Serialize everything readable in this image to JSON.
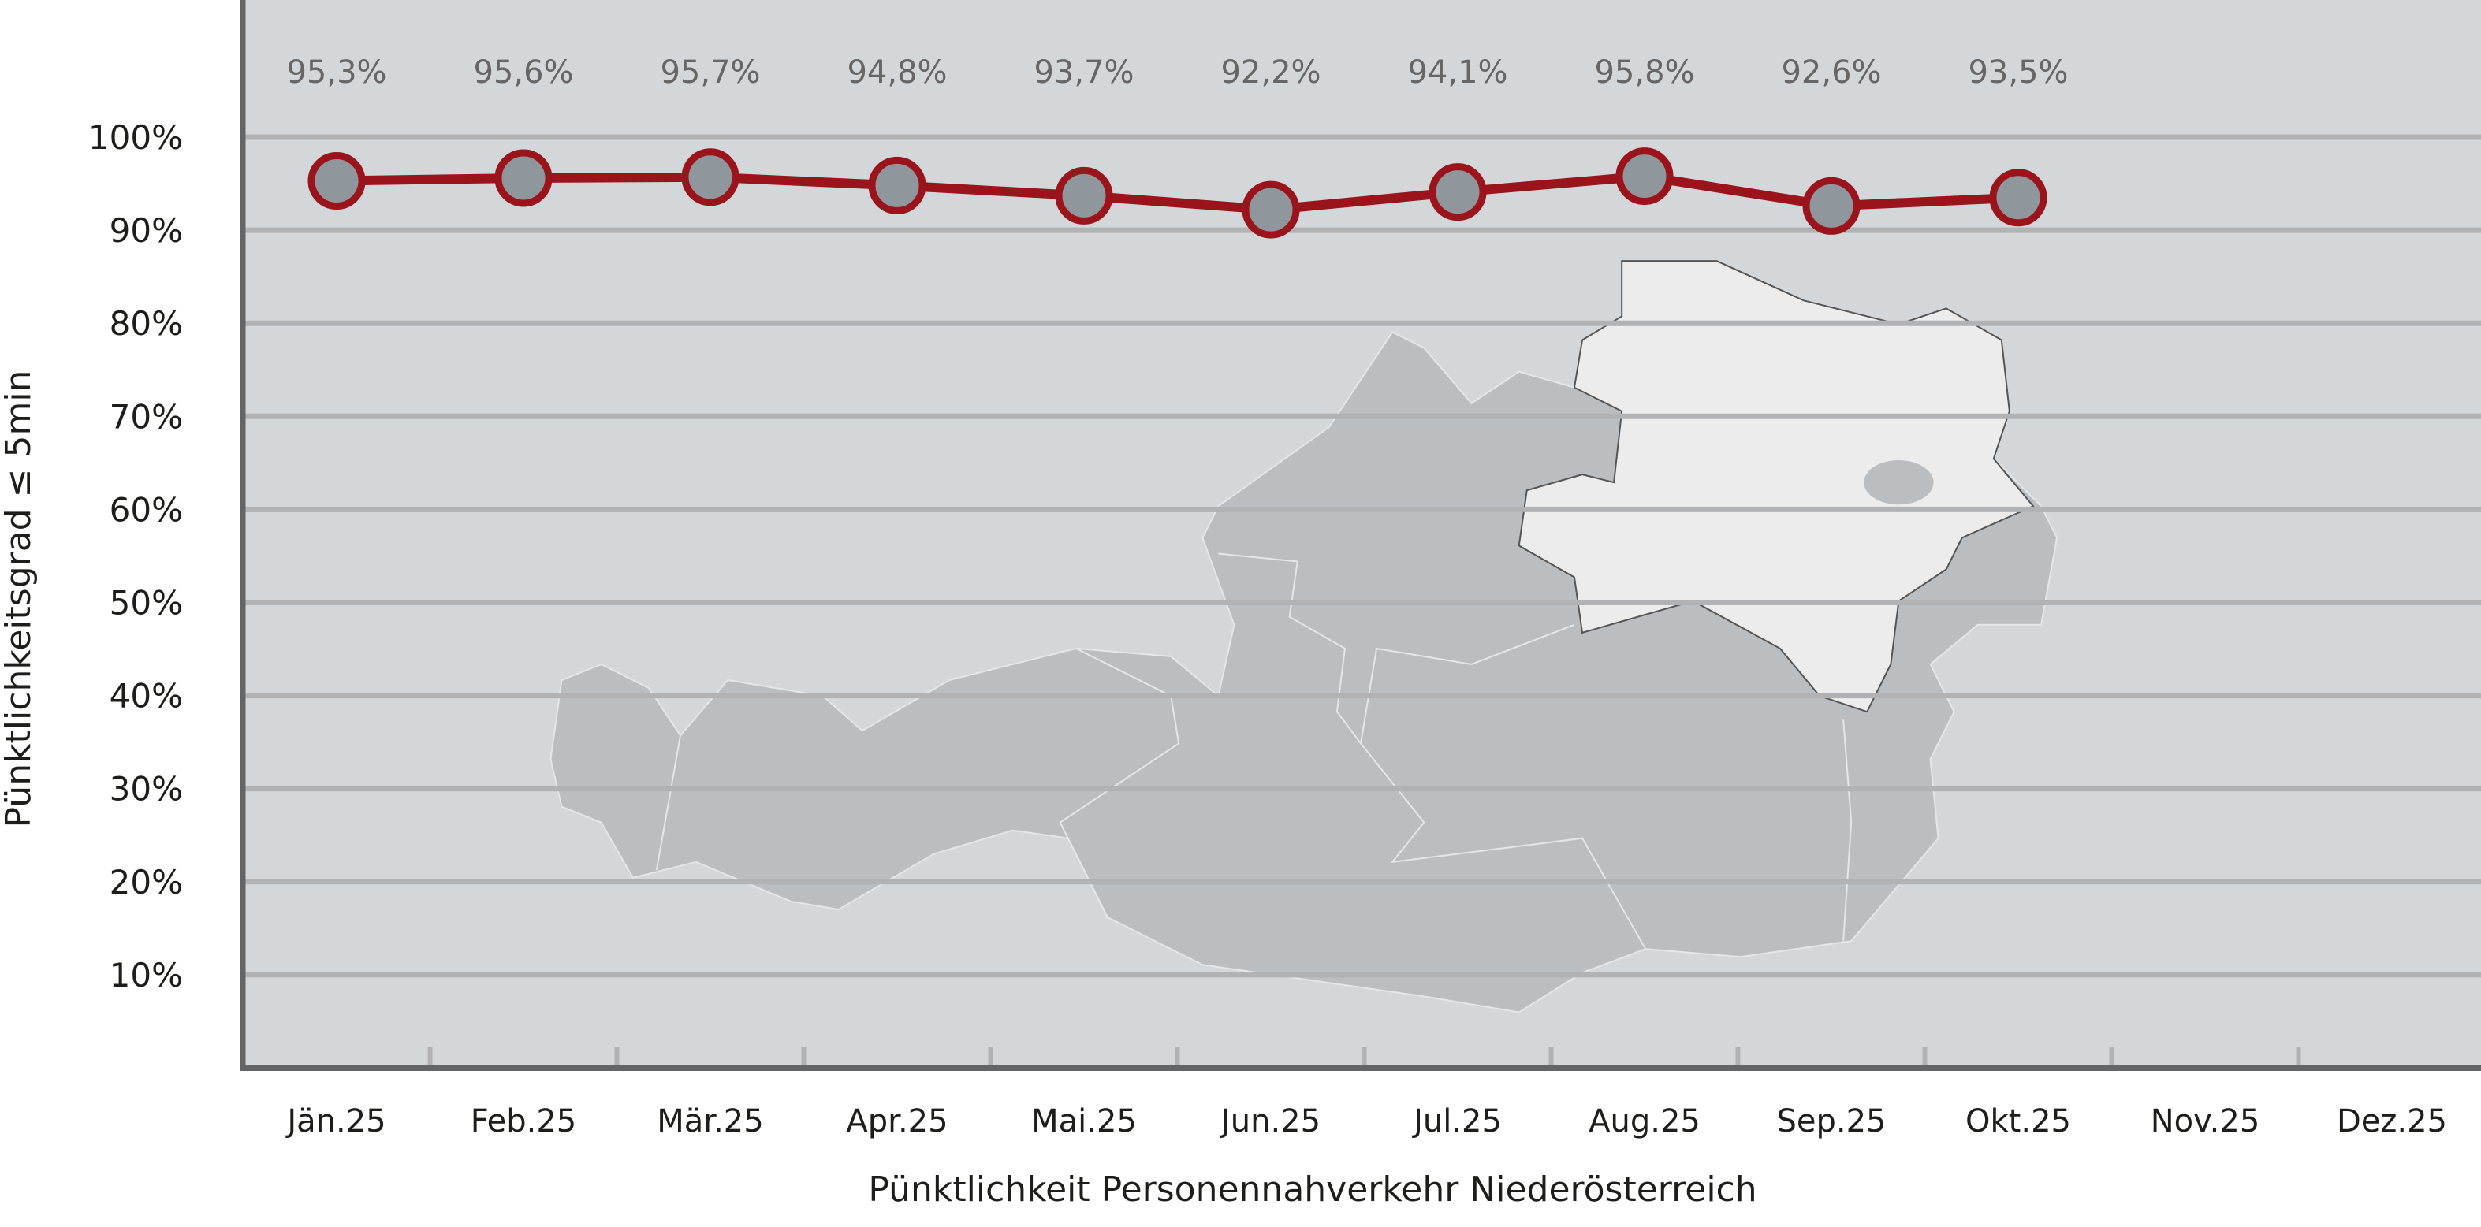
{
  "chart_data": {
    "type": "line",
    "title": "",
    "xlabel": "Pünktlichkeit Personennahverkehr Niederösterreich",
    "ylabel": "Pünktlichkeitsgrad ≤ 5min",
    "categories": [
      "Jän.25",
      "Feb.25",
      "Mär.25",
      "Apr.25",
      "Mai.25",
      "Jun.25",
      "Jul.25",
      "Aug.25",
      "Sep.25",
      "Okt.25",
      "Nov.25",
      "Dez.25"
    ],
    "series": [
      {
        "values": [
          95.3,
          95.6,
          95.7,
          94.8,
          93.7,
          92.2,
          94.1,
          95.8,
          92.6,
          93.5,
          null,
          null
        ]
      }
    ],
    "data_labels": [
      "95,3%",
      "95,6%",
      "95,7%",
      "94,8%",
      "93,7%",
      "92,2%",
      "94,1%",
      "95,8%",
      "92,6%",
      "93,5%"
    ],
    "ylim": [
      0,
      110
    ],
    "yticks": [
      10,
      20,
      30,
      40,
      50,
      60,
      70,
      80,
      90,
      100
    ],
    "ytick_labels": [
      "10%",
      "20%",
      "30%",
      "40%",
      "50%",
      "60%",
      "70%",
      "80%",
      "90%",
      "100%"
    ],
    "grid": true,
    "legend": "none",
    "background_image": "map of Austria with Lower Austria highlighted",
    "colors": {
      "plot_background": "#d4d7da",
      "gridline": "#b1b2b4",
      "axis": "#646567",
      "line": "#9b141c",
      "marker_fill": "#8f969c",
      "data_label": "#666666",
      "map": "#bbbec1",
      "map_highlight": "#ececec"
    }
  }
}
